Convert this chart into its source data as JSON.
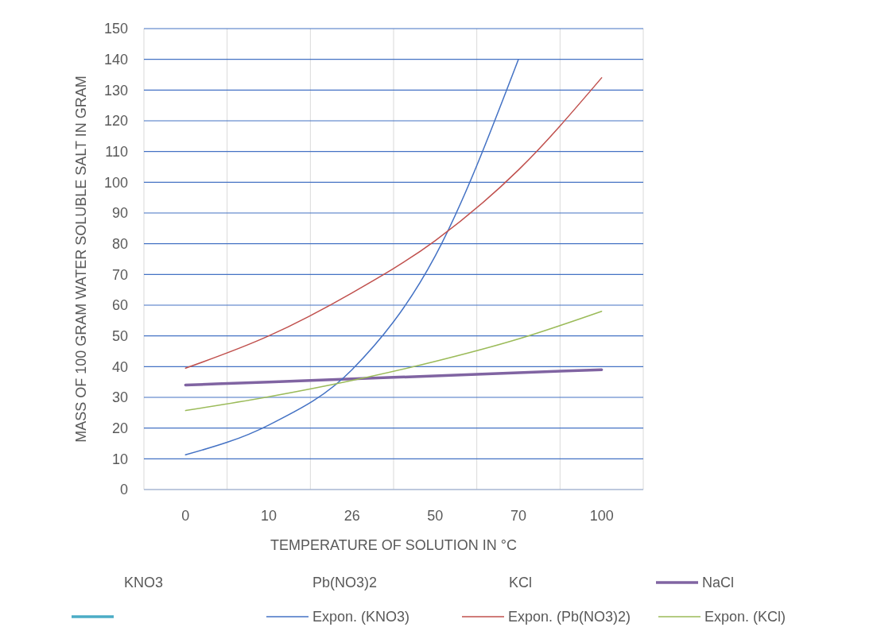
{
  "chart_data": {
    "type": "line",
    "xlabel": "TEMPERATURE OF SOLUTION IN  °C",
    "ylabel": "MASS OF 100 GRAM WATER SOLUBLE SALT IN GRAM",
    "categories": [
      "0",
      "10",
      "26",
      "50",
      "70",
      "100"
    ],
    "series": [
      {
        "name": "NaCl",
        "color": "#8064a2",
        "values": [
          34,
          35,
          36,
          37,
          38,
          39
        ]
      },
      {
        "name": "Expon. (KNO3)",
        "color": "#4472c4",
        "values": [
          11.3,
          21,
          39,
          76,
          140,
          null
        ]
      },
      {
        "name": "Expon. (Pb(NO3)2)",
        "color": "#c0504d",
        "values": [
          39.5,
          50,
          64,
          81,
          104,
          134
        ]
      },
      {
        "name": "Expon. (KCl)",
        "color": "#9bbb59",
        "values": [
          25.7,
          30.2,
          35.5,
          41.7,
          49,
          58
        ]
      }
    ],
    "ylim": [
      0,
      150
    ],
    "yticks": [
      0,
      10,
      20,
      30,
      40,
      50,
      60,
      70,
      80,
      90,
      100,
      110,
      120,
      130,
      140,
      150
    ],
    "grid": true,
    "legend": "bottom",
    "marker": "none",
    "line_style": "solid",
    "annotations": [
      "KNO3",
      "Pb(NO3)2",
      "KCl"
    ]
  }
}
